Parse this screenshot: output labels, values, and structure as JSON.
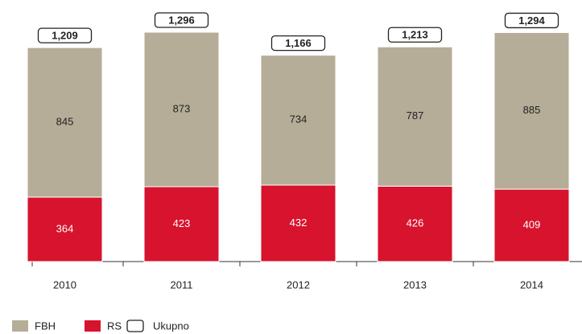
{
  "chart_data": {
    "type": "bar",
    "stacked": true,
    "categories": [
      "2010",
      "2011",
      "2012",
      "2013",
      "2014"
    ],
    "series": [
      {
        "name": "RS",
        "color": "#d7132d",
        "values": [
          364,
          423,
          432,
          426,
          409
        ]
      },
      {
        "name": "FBH",
        "color": "#b6ad98",
        "values": [
          845,
          873,
          734,
          787,
          885
        ]
      },
      {
        "name": "Ukupno",
        "color": "#ffffff",
        "values": [
          1209,
          1296,
          1166,
          1213,
          1294
        ],
        "value_labels": [
          "1,209",
          "1,296",
          "1,166",
          "1,213",
          "1,294"
        ]
      }
    ]
  }
}
